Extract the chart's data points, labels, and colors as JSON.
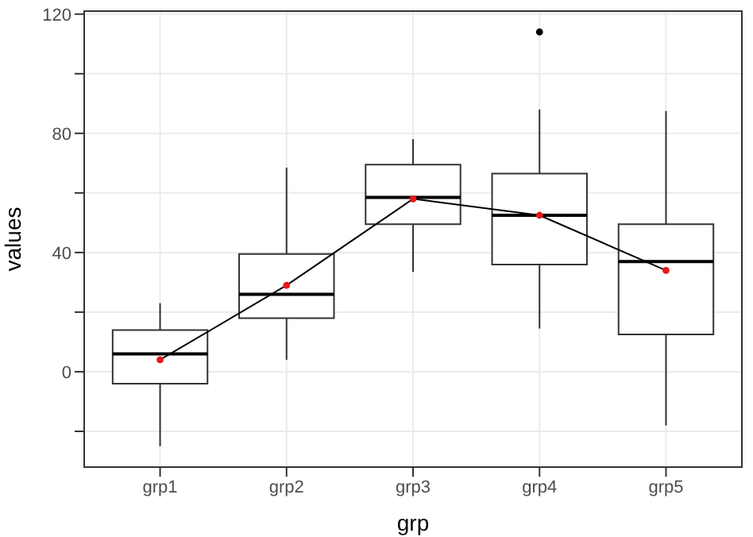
{
  "chart_data": {
    "type": "box",
    "xlabel": "grp",
    "ylabel": "values",
    "categories": [
      "grp1",
      "grp2",
      "grp3",
      "grp4",
      "grp5"
    ],
    "boxes": [
      {
        "low": -25,
        "q1": -4,
        "median": 6,
        "q3": 14,
        "high": 23,
        "mean": 4
      },
      {
        "low": 4,
        "q1": 18,
        "median": 26,
        "q3": 39.5,
        "high": 68.5,
        "mean": 29
      },
      {
        "low": 33.5,
        "q1": 49.5,
        "median": 58.5,
        "q3": 69.5,
        "high": 78,
        "mean": 58
      },
      {
        "low": 14.5,
        "q1": 36,
        "median": 52.5,
        "q3": 66.5,
        "high": 88,
        "mean": 52.5,
        "outliers": [
          114
        ]
      },
      {
        "low": -18,
        "q1": 12.5,
        "median": 37,
        "q3": 49.5,
        "high": 87.5,
        "mean": 34
      }
    ],
    "series": [
      {
        "type": "line",
        "color": "#000000",
        "values": [
          4,
          29,
          58,
          52.5,
          34
        ]
      }
    ],
    "ylim": [
      -32,
      121
    ],
    "yticks": [
      {
        "value": -20,
        "label": null
      },
      0,
      {
        "value": 20,
        "label": null
      },
      40,
      {
        "value": 60,
        "label": null
      },
      80,
      {
        "value": 100,
        "label": null
      },
      120
    ],
    "grid": true
  }
}
